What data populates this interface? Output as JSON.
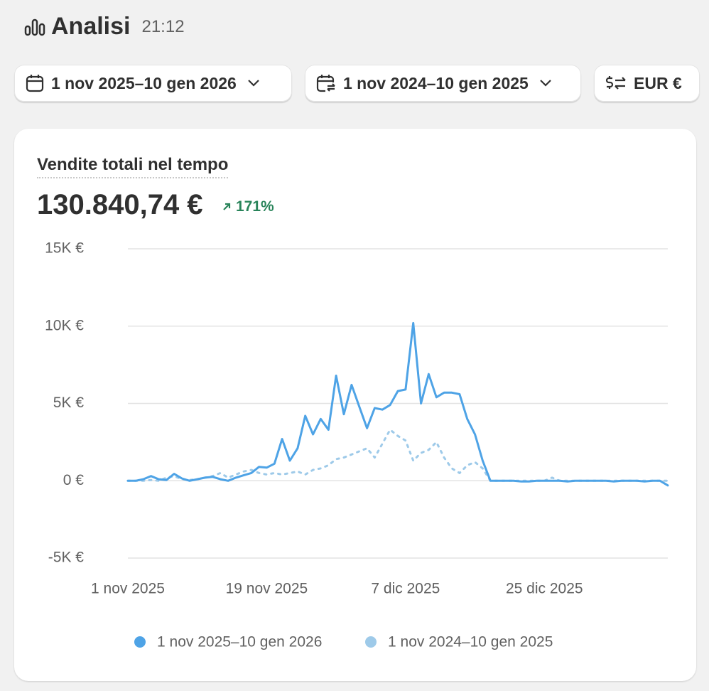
{
  "header": {
    "title": "Analisi",
    "time": "21:12"
  },
  "toolbar": {
    "date_range": "1 nov 2025–10 gen 2026",
    "compare_range": "1 nov 2024–10 gen 2025",
    "currency": "EUR €"
  },
  "card": {
    "title": "Vendite totali nel tempo",
    "total": "130.840,74 €",
    "change": "171%"
  },
  "chart_data": {
    "type": "line",
    "categories": [
      "1 nov 2025",
      null,
      null,
      null,
      null,
      null,
      null,
      null,
      null,
      null,
      null,
      null,
      null,
      null,
      null,
      null,
      null,
      null,
      "19 nov 2025",
      null,
      null,
      null,
      null,
      null,
      null,
      null,
      null,
      null,
      null,
      null,
      null,
      null,
      null,
      null,
      null,
      null,
      "7 dic 2025",
      null,
      null,
      null,
      null,
      null,
      null,
      null,
      null,
      null,
      null,
      null,
      null,
      null,
      null,
      null,
      null,
      null,
      "25 dic 2025",
      null,
      null,
      null,
      null,
      null,
      null,
      null,
      null,
      null,
      null,
      null,
      null,
      null,
      null,
      null,
      null
    ],
    "series": [
      {
        "name": "1 nov 2025–10 gen 2026",
        "color": "#4ea3e6",
        "dashed": false,
        "values": [
          0,
          0,
          100,
          300,
          100,
          50,
          450,
          150,
          0,
          100,
          200,
          250,
          100,
          0,
          200,
          350,
          500,
          900,
          850,
          1100,
          2700,
          1300,
          2100,
          4200,
          3000,
          4000,
          3300,
          6800,
          4300,
          6200,
          4800,
          3400,
          4700,
          4600,
          4900,
          5800,
          5900,
          10200,
          5000,
          6900,
          5400,
          5700,
          5700,
          5600,
          4000,
          3000,
          1300,
          0,
          0,
          0,
          0,
          -50,
          -50,
          0,
          0,
          0,
          0,
          -50,
          0,
          0,
          0,
          0,
          0,
          -50,
          0,
          0,
          0,
          -50,
          0,
          0,
          -300
        ]
      },
      {
        "name": "1 nov 2024–10 gen 2025",
        "color": "#9ecae9",
        "dashed": true,
        "values": [
          0,
          0,
          0,
          50,
          0,
          200,
          300,
          100,
          50,
          100,
          200,
          300,
          500,
          200,
          400,
          600,
          700,
          500,
          400,
          500,
          400,
          500,
          600,
          400,
          700,
          800,
          1000,
          1400,
          1500,
          1700,
          1900,
          2100,
          1500,
          2400,
          3300,
          2900,
          2600,
          1300,
          1800,
          2000,
          2500,
          1500,
          800,
          500,
          1000,
          1200,
          800,
          0,
          0,
          0,
          0,
          0,
          0,
          0,
          0,
          200,
          0,
          0,
          0,
          0,
          0,
          0,
          0,
          0,
          0,
          0,
          0,
          0,
          0,
          0,
          0
        ]
      }
    ],
    "ylim": [
      -5000,
      15000
    ],
    "yticks": [
      {
        "value": -5000,
        "label": "-5K €"
      },
      {
        "value": 0,
        "label": "0 €"
      },
      {
        "value": 5000,
        "label": "5K €"
      },
      {
        "value": 10000,
        "label": "10K €"
      },
      {
        "value": 15000,
        "label": "15K €"
      }
    ],
    "grid": true
  }
}
